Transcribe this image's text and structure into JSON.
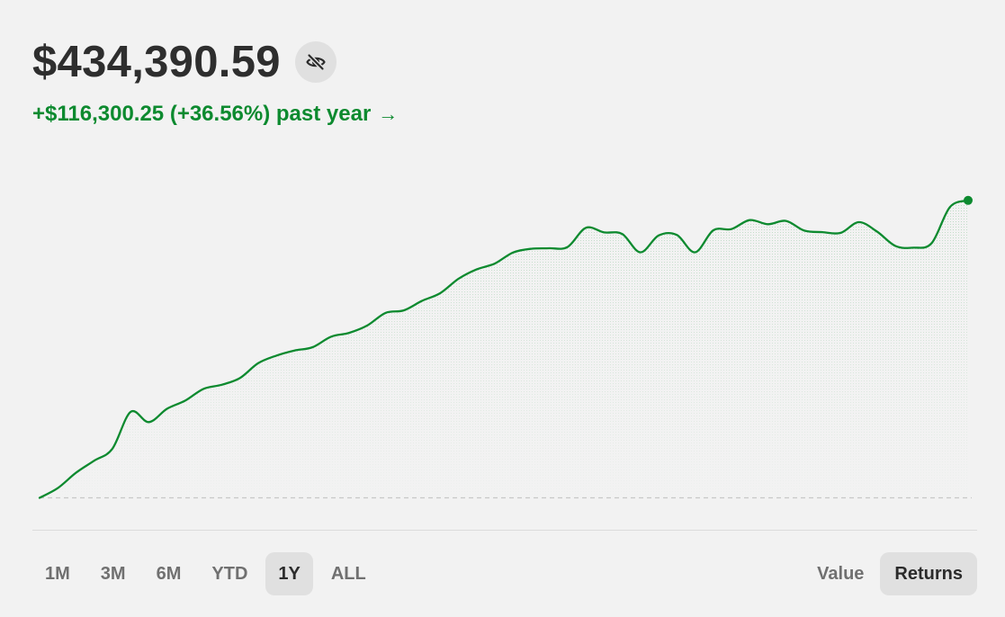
{
  "header": {
    "balance": "$434,390.59",
    "change_text": "+$116,300.25 (+36.56%) past year",
    "change_arrow": "→",
    "hide_icon": "eye-slash-icon"
  },
  "colors": {
    "accent": "#0d8a2f",
    "baseline": "#c8c8c8",
    "background": "#f2f2f2",
    "selected_tab_bg": "#e0e0e0"
  },
  "range_tabs": [
    {
      "label": "1M",
      "active": false
    },
    {
      "label": "3M",
      "active": false
    },
    {
      "label": "6M",
      "active": false
    },
    {
      "label": "YTD",
      "active": false
    },
    {
      "label": "1Y",
      "active": true
    },
    {
      "label": "ALL",
      "active": false
    }
  ],
  "mode_tabs": [
    {
      "label": "Value",
      "active": false
    },
    {
      "label": "Returns",
      "active": true
    }
  ],
  "chart_data": {
    "type": "area",
    "title": "",
    "xlabel": "",
    "ylabel": "",
    "baseline_dashed": true,
    "grid": false,
    "ylim": [
      -3000,
      118000
    ],
    "series": [
      {
        "values": [
          0,
          3800,
          9800,
          14500,
          19200,
          33600,
          29600,
          34800,
          38000,
          42600,
          44200,
          46800,
          52600,
          55600,
          57600,
          58900,
          63000,
          64500,
          67400,
          72300,
          73300,
          77000,
          80000,
          85600,
          89300,
          91600,
          95900,
          97400,
          97600,
          98100,
          105600,
          103800,
          103200,
          96000,
          102600,
          102800,
          96000,
          104600,
          105100,
          108600,
          107000,
          108300,
          104500,
          103900,
          103600,
          107800,
          104100,
          98500,
          97800,
          99600,
          113700,
          116300
        ]
      }
    ]
  }
}
